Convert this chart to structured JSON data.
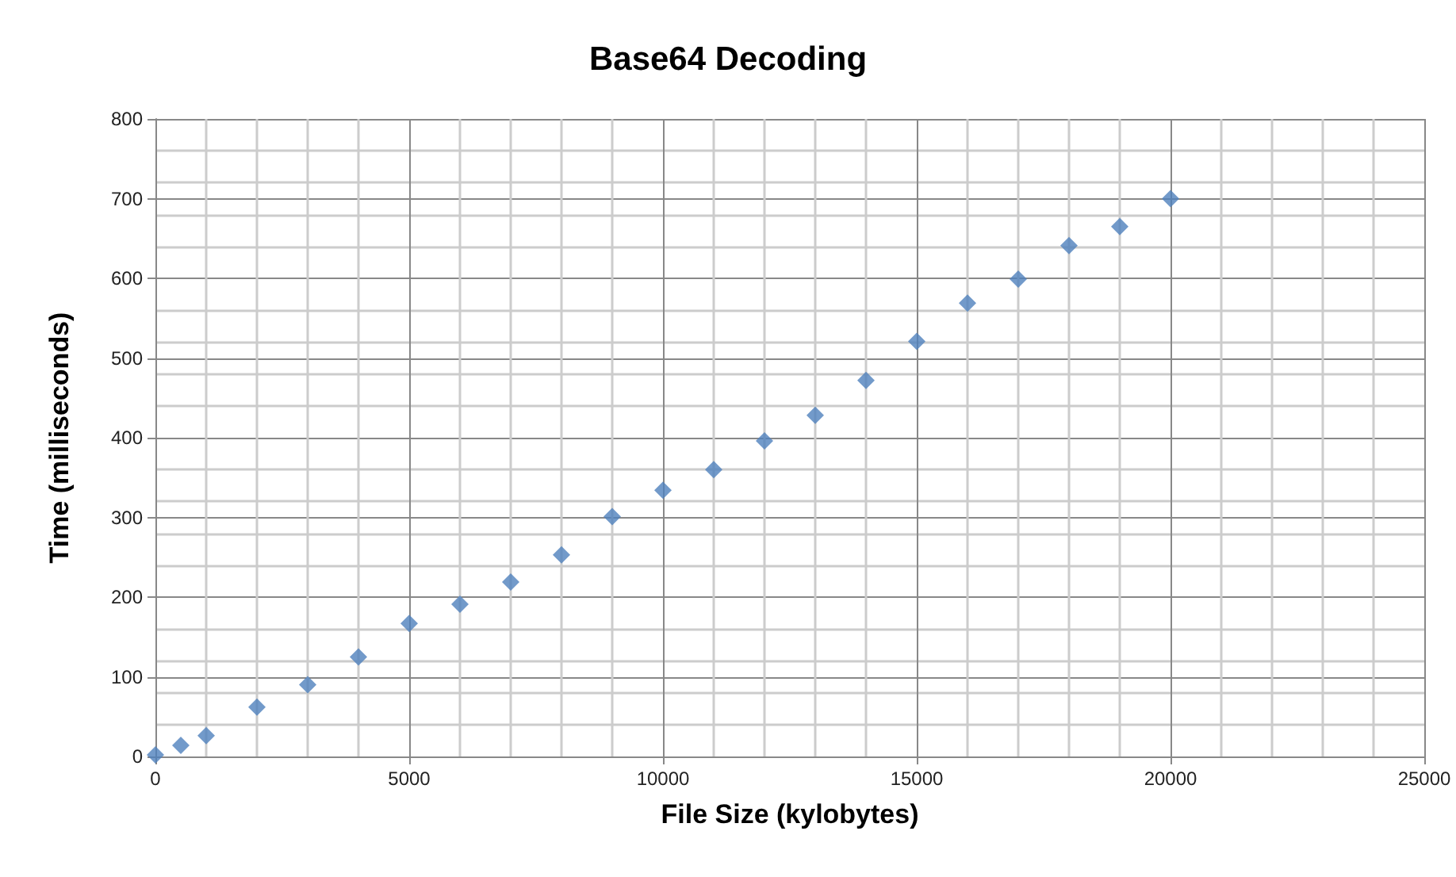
{
  "chart_data": {
    "type": "scatter",
    "title": "Base64 Decoding",
    "xlabel": "File Size (kylobytes)",
    "ylabel": "Time (milliseconds)",
    "x": [
      0,
      500,
      1000,
      2000,
      3000,
      4000,
      5000,
      6000,
      7000,
      8000,
      9000,
      10000,
      11000,
      12000,
      13000,
      14000,
      15000,
      16000,
      17000,
      18000,
      19000,
      20000
    ],
    "series": [
      {
        "color": "#4f81bd",
        "values": [
          2,
          14,
          26,
          62,
          90,
          125,
          167,
          191,
          219,
          253,
          301,
          334,
          360,
          396,
          428,
          472,
          521,
          569,
          599,
          641,
          665,
          700
        ]
      }
    ],
    "xlim": [
      0,
      25000
    ],
    "xticks": [
      0,
      5000,
      10000,
      15000,
      20000,
      25000
    ],
    "ylim": [
      0,
      800
    ],
    "yticks": [
      0,
      100,
      200,
      300,
      400,
      500,
      600,
      700,
      800
    ],
    "grid": true,
    "marker": "diamond"
  }
}
